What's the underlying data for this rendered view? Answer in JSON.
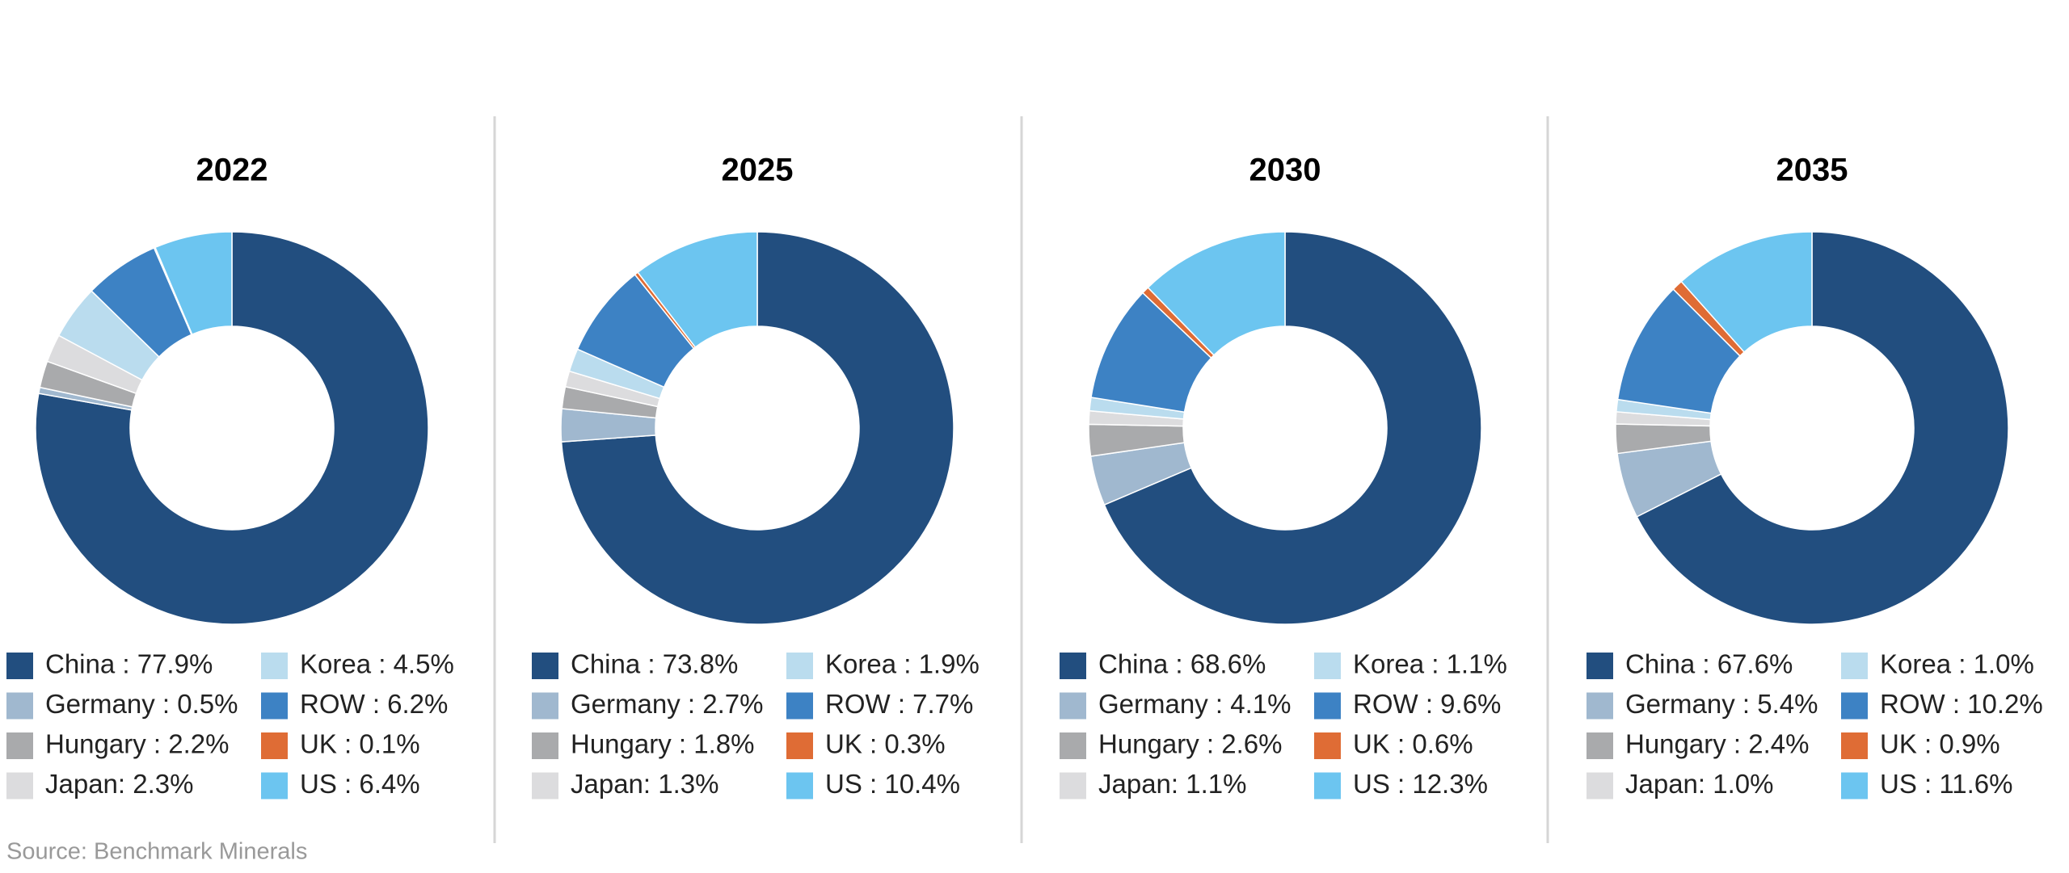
{
  "chart_data": [
    {
      "type": "donut",
      "title": "2022",
      "values": [
        77.9,
        0.5,
        2.2,
        2.3,
        4.5,
        6.2,
        0.1,
        6.4
      ],
      "value_labels": [
        "China : 77.9%",
        "Germany : 0.5%",
        "Hungary : 2.2%",
        "Japan: 2.3%",
        "Korea : 4.5%",
        "ROW : 6.2%",
        "UK : 0.1%",
        "US : 6.4%"
      ],
      "colors": [
        "#224e7f",
        "#a0b8cf",
        "#a9aaac",
        "#dcdcde",
        "#badcee",
        "#3d82c4",
        "#df6c35",
        "#6cc5f0"
      ]
    },
    {
      "type": "donut",
      "title": "2025",
      "values": [
        73.8,
        2.7,
        1.8,
        1.3,
        1.9,
        7.7,
        0.3,
        10.4
      ],
      "value_labels": [
        "China : 73.8%",
        "Germany : 2.7%",
        "Hungary : 1.8%",
        "Japan: 1.3%",
        "Korea : 1.9%",
        "ROW : 7.7%",
        "UK : 0.3%",
        "US : 10.4%"
      ],
      "colors": [
        "#224e7f",
        "#a0b8cf",
        "#a9aaac",
        "#dcdcde",
        "#badcee",
        "#3d82c4",
        "#df6c35",
        "#6cc5f0"
      ]
    },
    {
      "type": "donut",
      "title": "2030",
      "values": [
        68.6,
        4.1,
        2.6,
        1.1,
        1.1,
        9.6,
        0.6,
        12.3
      ],
      "value_labels": [
        "China : 68.6%",
        "Germany : 4.1%",
        "Hungary : 2.6%",
        "Japan: 1.1%",
        "Korea : 1.1%",
        "ROW : 9.6%",
        "UK : 0.6%",
        "US : 12.3%"
      ],
      "colors": [
        "#224e7f",
        "#a0b8cf",
        "#a9aaac",
        "#dcdcde",
        "#badcee",
        "#3d82c4",
        "#df6c35",
        "#6cc5f0"
      ]
    },
    {
      "type": "donut",
      "title": "2035",
      "values": [
        67.6,
        5.4,
        2.4,
        1.0,
        1.0,
        10.2,
        0.9,
        11.6
      ],
      "value_labels": [
        "China : 67.6%",
        "Germany : 5.4%",
        "Hungary : 2.4%",
        "Japan: 1.0%",
        "Korea : 1.0%",
        "ROW : 10.2%",
        "UK : 0.9%",
        "US : 11.6%"
      ],
      "colors": [
        "#224e7f",
        "#a0b8cf",
        "#a9aaac",
        "#dcdcde",
        "#badcee",
        "#3d82c4",
        "#df6c35",
        "#6cc5f0"
      ]
    }
  ],
  "source": "Source: Benchmark Minerals"
}
